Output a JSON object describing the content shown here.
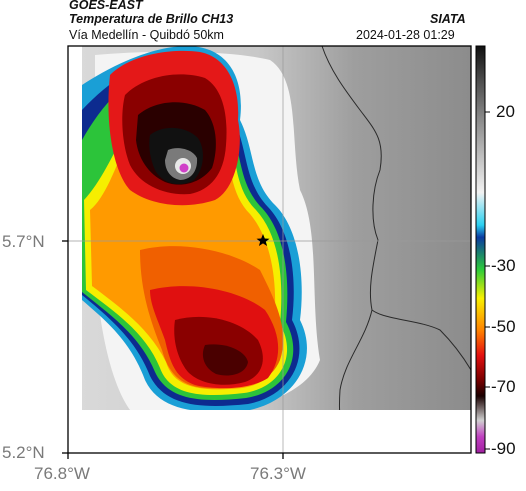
{
  "header": {
    "satellite": "GOES-EAST",
    "product": "Temperatura de Brillo CH13",
    "region": "Vía Medellín - Quibdó 50km",
    "source": "SIATA",
    "datetime": "2024-01-28 01:29"
  },
  "axes": {
    "lon_ticks": [
      "76.8°W",
      "76.3°W"
    ],
    "lat_ticks": [
      "5.7°N",
      "5.2°N"
    ]
  },
  "colorbar": {
    "ticks": [
      "20",
      "-30",
      "-50",
      "-70",
      "-90"
    ]
  },
  "marker": {
    "icon": "star-icon"
  },
  "colors": {
    "frame": "#000000",
    "grid": "#9a9a9a",
    "border_line": "#2a2a2a"
  }
}
